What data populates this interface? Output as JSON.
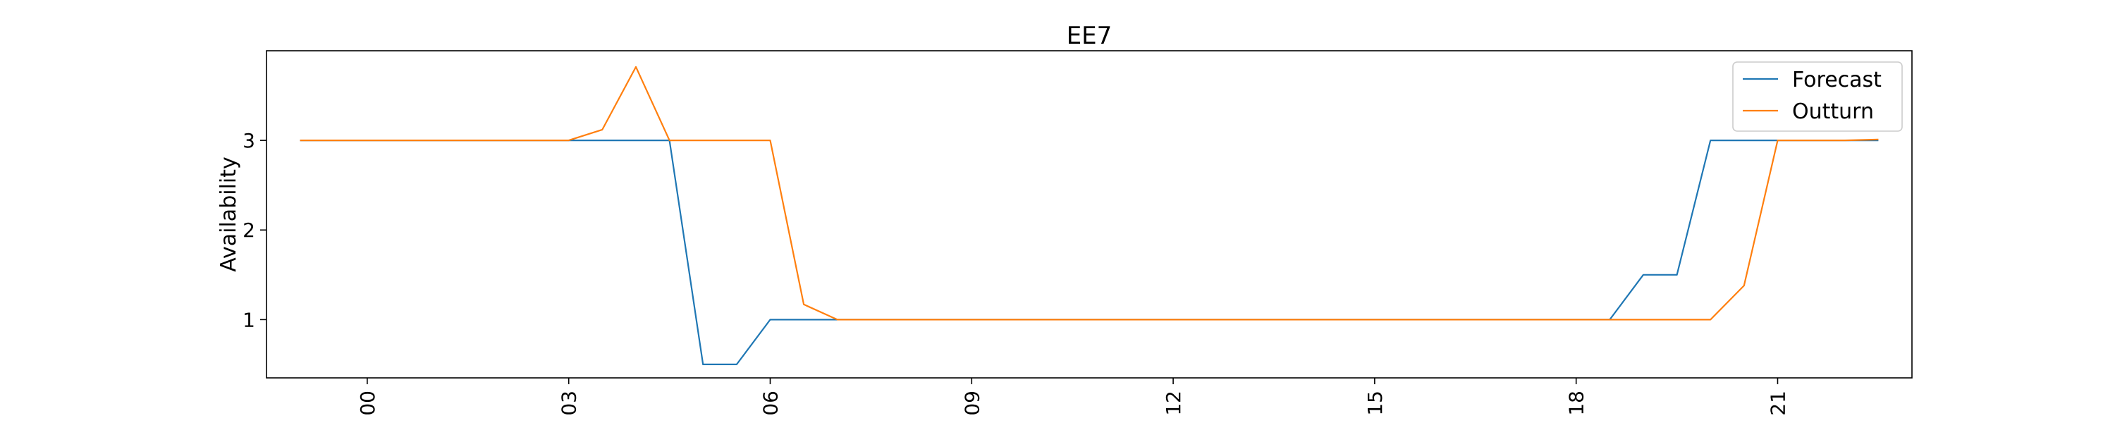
{
  "chart_data": {
    "type": "line",
    "title": "EE7",
    "xlabel": "",
    "ylabel": "Availability",
    "x": [
      "23:00",
      "23:30",
      "00:00",
      "00:30",
      "01:00",
      "01:30",
      "02:00",
      "02:30",
      "03:00",
      "03:30",
      "04:00",
      "04:30",
      "05:00",
      "05:30",
      "06:00",
      "06:30",
      "07:00",
      "07:30",
      "08:00",
      "08:30",
      "09:00",
      "09:30",
      "10:00",
      "10:30",
      "11:00",
      "11:30",
      "12:00",
      "12:30",
      "13:00",
      "13:30",
      "14:00",
      "14:30",
      "15:00",
      "15:30",
      "16:00",
      "16:30",
      "17:00",
      "17:30",
      "18:00",
      "18:30",
      "19:00",
      "19:30",
      "20:00",
      "20:30",
      "21:00",
      "21:30",
      "22:00",
      "22:30"
    ],
    "x_tick_values": [
      "00:00",
      "03:00",
      "06:00",
      "09:00",
      "12:00",
      "15:00",
      "18:00",
      "21:00"
    ],
    "x_tick_labels": [
      "3 00",
      "3 03",
      "3 06",
      "3 09",
      "3 12",
      "3 15",
      "3 18",
      "3 21"
    ],
    "ylim": [
      0.35,
      4.0
    ],
    "yticks": [
      1,
      2,
      3
    ],
    "grid": false,
    "legend_position": "top-right",
    "series": [
      {
        "name": "Forecast",
        "color": "#1f77b4",
        "values": [
          3,
          3,
          3,
          3,
          3,
          3,
          3,
          3,
          3,
          3,
          3,
          3,
          0.5,
          0.5,
          1,
          1,
          1,
          1,
          1,
          1,
          1,
          1,
          1,
          1,
          1,
          1,
          1,
          1,
          1,
          1,
          1,
          1,
          1,
          1,
          1,
          1,
          1,
          1,
          1,
          1,
          1.5,
          1.5,
          3,
          3,
          3,
          3,
          3,
          3
        ]
      },
      {
        "name": "Outturn",
        "color": "#ff7f0e",
        "values": [
          3,
          3,
          3,
          3,
          3,
          3,
          3,
          3,
          3,
          3.12,
          3.82,
          3,
          3,
          3,
          3,
          1.17,
          1,
          1,
          1,
          1,
          1,
          1,
          1,
          1,
          1,
          1,
          1,
          1,
          1,
          1,
          1,
          1,
          1,
          1,
          1,
          1,
          1,
          1,
          1,
          1,
          1,
          1,
          1,
          1.38,
          3,
          3,
          3,
          3.01
        ]
      }
    ]
  }
}
